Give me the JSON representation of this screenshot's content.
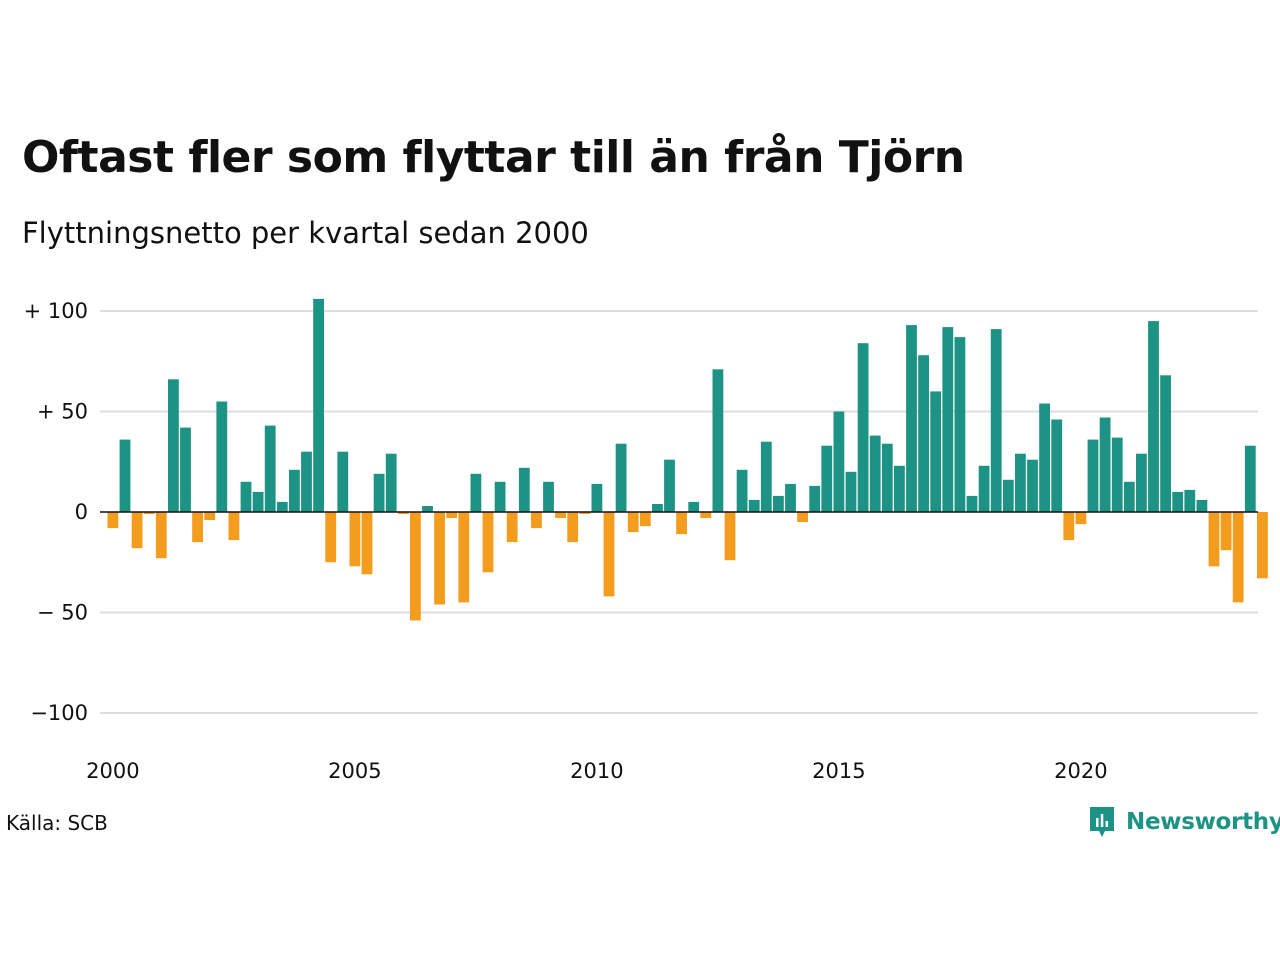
{
  "header": {
    "title": "Oftast fler som flyttar till än från Tjörn",
    "subtitle": "Flyttningsnetto per kvartal sedan 2000"
  },
  "footer": {
    "source": "Källa: SCB",
    "brand": "Newsworthy"
  },
  "colors": {
    "positive": "#1c9384",
    "negative": "#f39c1e",
    "grid": "#dedede",
    "zero_line": "#111111",
    "brand": "#1c9384"
  },
  "icons": {
    "logo": "newsworthy-logo-icon"
  },
  "chart_data": {
    "type": "bar",
    "title": "Oftast fler som flyttar till än från Tjörn",
    "subtitle": "Flyttningsnetto per kvartal sedan 2000",
    "xlabel": "",
    "ylabel": "",
    "ylim": [
      -100,
      100
    ],
    "y_ticks": [
      100,
      50,
      0,
      -50,
      -100
    ],
    "y_tick_labels": [
      "+ 100",
      "+  50",
      "0",
      "− 50",
      "−100"
    ],
    "x_ticks": [
      "2000",
      "2005",
      "2010",
      "2015",
      "2020"
    ],
    "grid": true,
    "legend": false,
    "periods_start": "2000 Q1",
    "periods_end": "2023 Q4",
    "values": [
      -8,
      36,
      -18,
      -1,
      -23,
      66,
      42,
      -15,
      -4,
      55,
      -14,
      15,
      10,
      43,
      5,
      21,
      30,
      106,
      -25,
      30,
      -27,
      -31,
      19,
      29,
      -1,
      -54,
      3,
      -46,
      -3,
      -45,
      19,
      -30,
      15,
      -15,
      22,
      -8,
      15,
      -3,
      -15,
      -1,
      14,
      -42,
      34,
      -10,
      -7,
      4,
      26,
      -11,
      5,
      -3,
      71,
      -24,
      21,
      6,
      35,
      8,
      14,
      -5,
      13,
      33,
      50,
      20,
      84,
      38,
      34,
      23,
      93,
      78,
      60,
      92,
      87,
      8,
      23,
      91,
      16,
      29,
      26,
      54,
      46,
      -14,
      -6,
      36,
      47,
      37,
      15,
      29,
      95,
      68,
      10,
      11,
      6,
      -27,
      -19,
      -45,
      33,
      -33
    ]
  }
}
